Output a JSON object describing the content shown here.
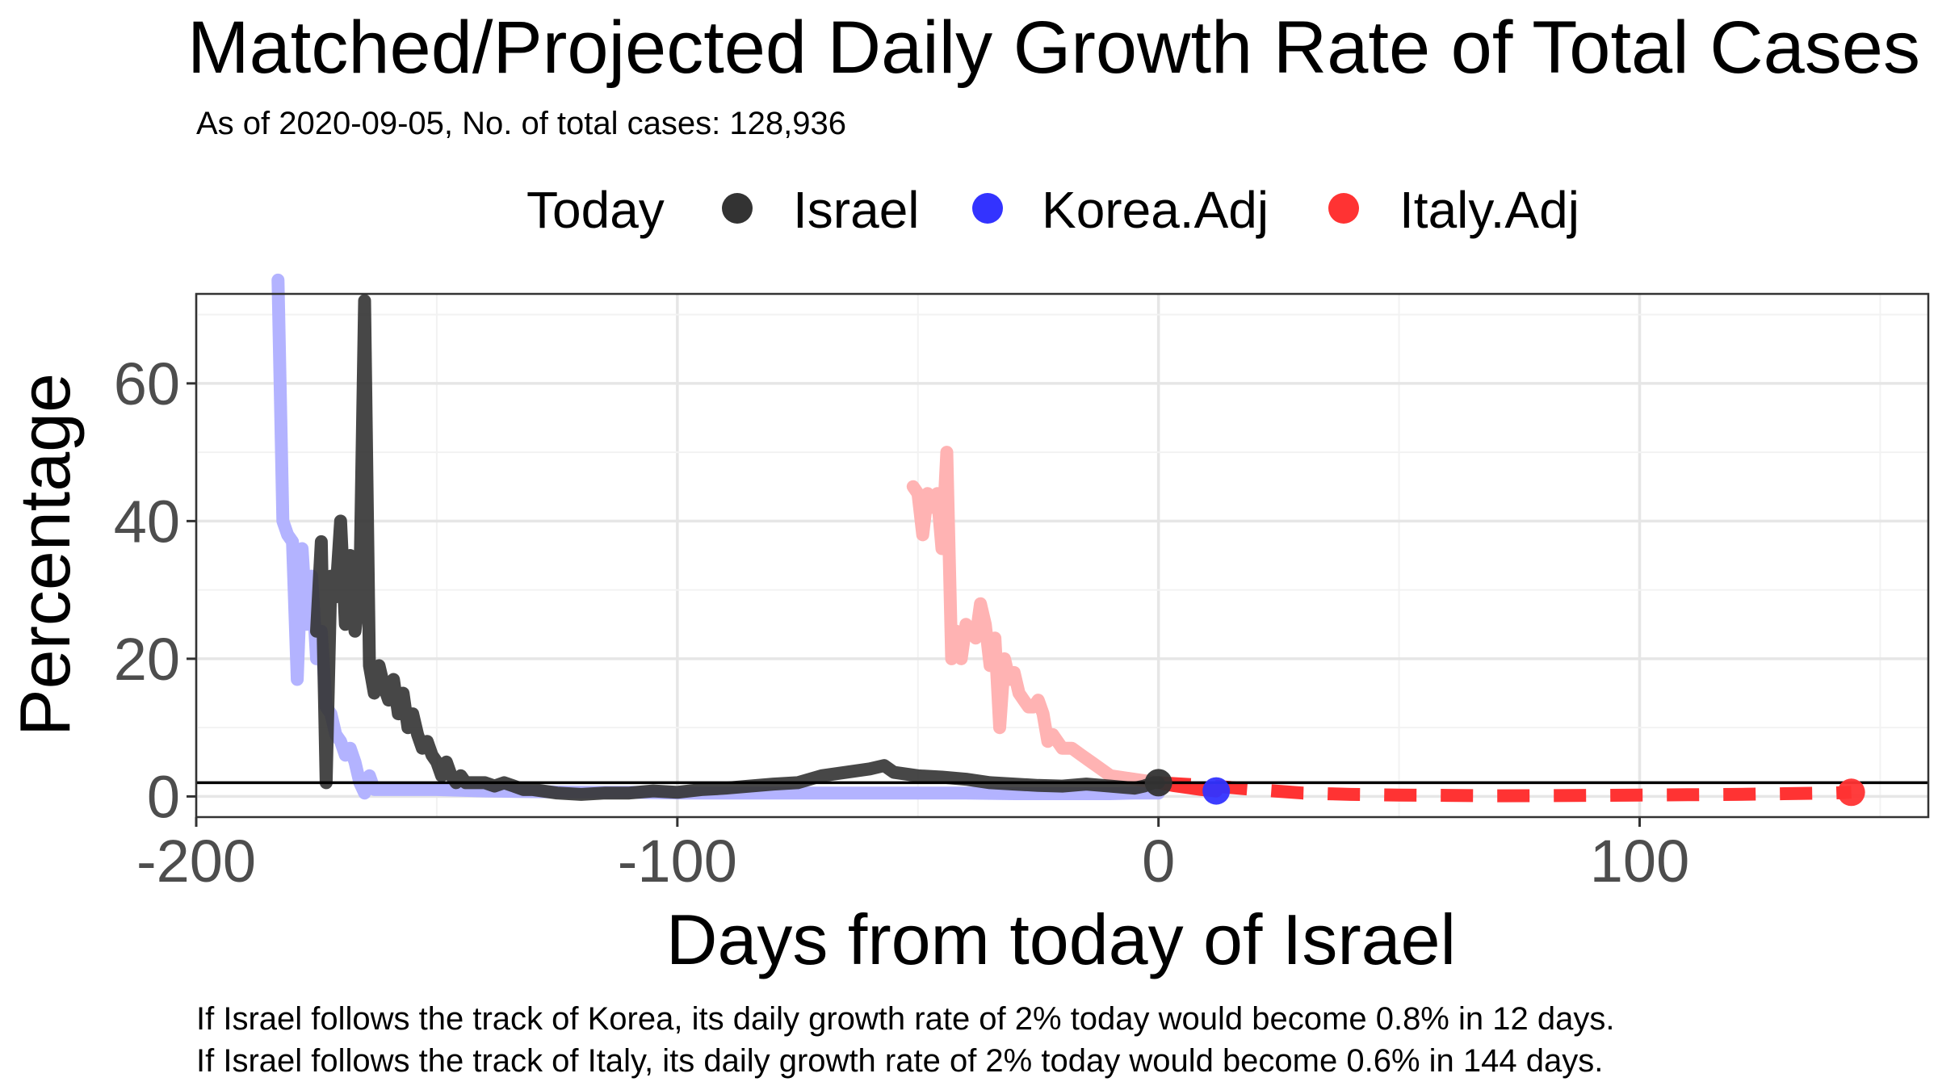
{
  "chart_data": {
    "type": "line",
    "title": "Matched/Projected Daily Growth Rate of Total Cases",
    "subtitle": "As of 2020-09-05, No. of total cases: 128,936",
    "xlabel": "Days from today of Israel",
    "ylabel": "Percentage",
    "xlim": [
      -200,
      160
    ],
    "ylim": [
      -3,
      73
    ],
    "x_ticks": [
      -200,
      -100,
      0,
      100
    ],
    "x_tick_labels": [
      "-200",
      "-100",
      "0",
      "100"
    ],
    "y_ticks": [
      0,
      20,
      40,
      60
    ],
    "y_tick_labels": [
      "0",
      "20",
      "40",
      "60"
    ],
    "grid": true,
    "legend_position": "top",
    "legend": {
      "title": "Today",
      "entries": [
        {
          "label": "Israel",
          "color": "#333333"
        },
        {
          "label": "Korea.Adj",
          "color": "#3333ff"
        },
        {
          "label": "Italy.Adj",
          "color": "#ff3333"
        }
      ]
    },
    "reference_line_y": 2,
    "series": [
      {
        "name": "Korea.Adj",
        "color": "#b3b3ff",
        "style": "solid",
        "x": [
          -183,
          -182,
          -181,
          -180,
          -179,
          -178,
          -177,
          -176,
          -175,
          -174,
          -173,
          -172,
          -171,
          -170,
          -169,
          -168,
          -167,
          -166,
          -165,
          -164,
          -163,
          -160,
          -150,
          -140,
          -130,
          -120,
          -110,
          -100,
          -90,
          -80,
          -70,
          -60,
          -50,
          -40,
          -30,
          -20,
          -10,
          -5,
          0
        ],
        "values": [
          75,
          40,
          38,
          37,
          17,
          36,
          25,
          32,
          20,
          24,
          13,
          12,
          9,
          8,
          6,
          7,
          5,
          2,
          0.5,
          3,
          1,
          1,
          1,
          0.8,
          0.7,
          0.6,
          0.6,
          0.5,
          0.5,
          0.5,
          0.5,
          0.5,
          0.5,
          0.5,
          0.4,
          0.4,
          0.4,
          0.5,
          0.5
        ]
      },
      {
        "name": "Korea.Adj projected",
        "color": "#ff3333",
        "style": "solid",
        "x": [
          0,
          3,
          6,
          9,
          12
        ],
        "values": [
          2,
          1.6,
          1.3,
          1.0,
          0.8
        ]
      },
      {
        "name": "Italy.Adj",
        "color": "#ffb3b3",
        "style": "solid",
        "x": [
          -51,
          -50,
          -49,
          -48,
          -47,
          -46,
          -45,
          -44,
          -43,
          -42,
          -41,
          -40,
          -39,
          -38,
          -37,
          -36,
          -35,
          -34,
          -33,
          -32,
          -31,
          -30,
          -29,
          -28,
          -27,
          -26,
          -25,
          -24,
          -23,
          -22,
          -21,
          -20,
          -18,
          -16,
          -14,
          -12,
          -10,
          -8,
          -6,
          -4,
          -2,
          0
        ],
        "values": [
          45,
          44,
          38,
          44,
          42,
          44,
          36,
          50,
          20,
          24,
          20,
          25,
          24,
          23,
          28,
          25,
          19,
          23,
          10,
          20,
          17,
          18,
          15,
          14,
          13,
          13,
          14,
          12,
          8,
          9,
          8,
          7,
          7,
          6,
          5,
          4,
          3,
          2.8,
          2.6,
          2.4,
          2.2,
          2
        ]
      },
      {
        "name": "Italy.Adj projected",
        "color": "#ff3333",
        "style": "dashed",
        "x": [
          0,
          10,
          20,
          30,
          40,
          50,
          60,
          70,
          80,
          90,
          100,
          110,
          120,
          130,
          140,
          144
        ],
        "values": [
          2,
          1.6,
          1.0,
          0.5,
          0.3,
          0.2,
          0.15,
          0.1,
          0.12,
          0.15,
          0.2,
          0.25,
          0.3,
          0.4,
          0.5,
          0.6
        ]
      },
      {
        "name": "Israel",
        "color": "#333333",
        "style": "solid",
        "x": [
          -175,
          -174,
          -173,
          -172,
          -171,
          -170,
          -169,
          -168,
          -167,
          -166,
          -165,
          -164,
          -163,
          -162,
          -161,
          -160,
          -159,
          -158,
          -157,
          -156,
          -155,
          -154,
          -153,
          -152,
          -151,
          -150,
          -149,
          -148,
          -147,
          -146,
          -145,
          -144,
          -143,
          -142,
          -140,
          -138,
          -136,
          -134,
          -132,
          -130,
          -125,
          -120,
          -115,
          -110,
          -105,
          -100,
          -95,
          -90,
          -85,
          -80,
          -75,
          -70,
          -65,
          -60,
          -57,
          -55,
          -50,
          -45,
          -40,
          -35,
          -30,
          -25,
          -20,
          -15,
          -10,
          -5,
          -3,
          -1,
          0
        ],
        "values": [
          24,
          37,
          2,
          32,
          29,
          40,
          25,
          35,
          24,
          30,
          72,
          19,
          15,
          19,
          16,
          14,
          17,
          12,
          15,
          10,
          12,
          9,
          7,
          8,
          6,
          5,
          3,
          5,
          3,
          2,
          3,
          2,
          2,
          2,
          2,
          1.5,
          2,
          1.5,
          1,
          1,
          0.5,
          0.3,
          0.5,
          0.5,
          0.8,
          0.6,
          1,
          1.2,
          1.5,
          1.8,
          2,
          3,
          3.5,
          4,
          4.5,
          3.5,
          3,
          2.8,
          2.5,
          2,
          1.8,
          1.6,
          1.5,
          1.8,
          1.5,
          1.2,
          1.5,
          2,
          2
        ]
      }
    ],
    "points": [
      {
        "label": "Israel",
        "x": 0,
        "y": 2,
        "color": "#333333"
      },
      {
        "label": "Korea.Adj",
        "x": 12,
        "y": 0.8,
        "color": "#3333ff"
      },
      {
        "label": "Italy.Adj",
        "x": 144,
        "y": 0.6,
        "color": "#ff3333"
      }
    ]
  },
  "caption": {
    "line1": "If Israel follows the track of Korea, its daily growth rate of 2% today would become 0.8% in 12 days.",
    "line2": "If Israel follows the track of Italy, its daily growth rate of 2% today would become 0.6% in 144 days."
  }
}
